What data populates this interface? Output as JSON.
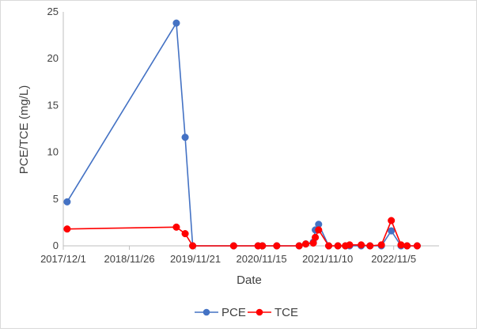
{
  "chart_data": {
    "type": "line",
    "title": "",
    "xlabel": "Date",
    "ylabel": "PCE/TCE (mg/L)",
    "xlim": [
      "2017-12-01",
      "2023-07-10"
    ],
    "ylim": [
      0,
      25
    ],
    "x_ticks": [
      "2017-12-01",
      "2018-11-26",
      "2019-11-21",
      "2020-11-15",
      "2021-11-10",
      "2022-11-05"
    ],
    "x_tick_labels": [
      "2017/12/1",
      "2018/11/26",
      "2019/11/21",
      "2020/11/15",
      "2021/11/10",
      "2022/11/5"
    ],
    "y_ticks": [
      0,
      5,
      10,
      15,
      20,
      25
    ],
    "y_tick_labels": [
      "0",
      "5",
      "10",
      "15",
      "20",
      "25"
    ],
    "grid": false,
    "legend_position": "bottom",
    "series": [
      {
        "name": "PCE",
        "color": "#4472c4",
        "points": [
          [
            "2017-12-22",
            4.7
          ],
          [
            "2019-08-09",
            23.8
          ],
          [
            "2019-09-26",
            11.6
          ],
          [
            "2019-11-06",
            0
          ],
          [
            "2020-06-16",
            0
          ],
          [
            "2020-10-27",
            0
          ],
          [
            "2020-11-20",
            0
          ],
          [
            "2021-02-06",
            0
          ],
          [
            "2021-06-08",
            0
          ],
          [
            "2021-07-14",
            0.2
          ],
          [
            "2021-08-24",
            0.4
          ],
          [
            "2021-09-04",
            1.7
          ],
          [
            "2021-09-22",
            2.3
          ],
          [
            "2021-11-16",
            0
          ],
          [
            "2022-01-05",
            0
          ],
          [
            "2022-02-15",
            0
          ],
          [
            "2022-03-10",
            0
          ],
          [
            "2022-05-12",
            0
          ],
          [
            "2022-06-29",
            0
          ],
          [
            "2022-08-30",
            0
          ],
          [
            "2022-10-23",
            1.6
          ],
          [
            "2022-12-15",
            0
          ],
          [
            "2023-01-17",
            0
          ],
          [
            "2023-03-13",
            0
          ]
        ]
      },
      {
        "name": "TCE",
        "color": "#ff0000",
        "points": [
          [
            "2017-12-22",
            1.8
          ],
          [
            "2019-08-09",
            2.0
          ],
          [
            "2019-09-26",
            1.3
          ],
          [
            "2019-11-06",
            0
          ],
          [
            "2020-06-16",
            0
          ],
          [
            "2020-10-27",
            0
          ],
          [
            "2020-11-20",
            0
          ],
          [
            "2021-02-06",
            0
          ],
          [
            "2021-06-08",
            0
          ],
          [
            "2021-07-14",
            0.2
          ],
          [
            "2021-08-24",
            0.3
          ],
          [
            "2021-09-04",
            0.9
          ],
          [
            "2021-09-22",
            1.7
          ],
          [
            "2021-11-16",
            0
          ],
          [
            "2022-01-05",
            0
          ],
          [
            "2022-02-15",
            0
          ],
          [
            "2022-03-10",
            0.1
          ],
          [
            "2022-05-12",
            0.1
          ],
          [
            "2022-06-29",
            0
          ],
          [
            "2022-08-30",
            0.1
          ],
          [
            "2022-10-23",
            2.7
          ],
          [
            "2022-12-15",
            0.1
          ],
          [
            "2023-01-17",
            0
          ],
          [
            "2023-03-13",
            0
          ]
        ]
      }
    ]
  }
}
